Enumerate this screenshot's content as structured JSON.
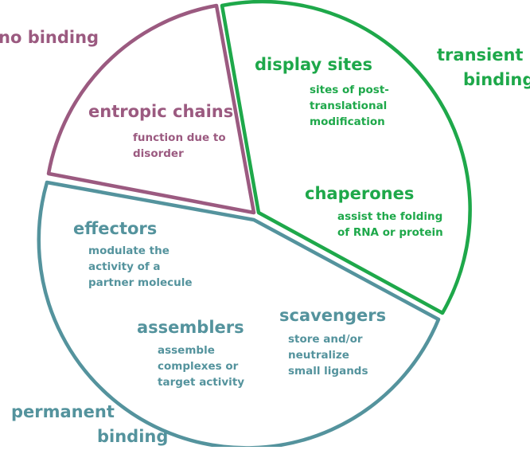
{
  "colors": {
    "no_binding": "#9b5a80",
    "transient_binding": "#1ea84a",
    "permanent_binding": "#54939d"
  },
  "groups": {
    "no_binding": "no binding",
    "transient_binding_1": "transient",
    "transient_binding_2": "binding",
    "permanent_binding_1": "permanent",
    "permanent_binding_2": "binding"
  },
  "categories": {
    "entropic_chains": {
      "title": "entropic chains",
      "desc": "function due to\ndisorder"
    },
    "display_sites": {
      "title": "display sites",
      "desc": "sites of post-\ntranslational\nmodification"
    },
    "chaperones": {
      "title": "chaperones",
      "desc": "assist the folding\nof RNA or protein"
    },
    "effectors": {
      "title": "effectors",
      "desc": "modulate the\nactivity of a\npartner molecule"
    },
    "assemblers": {
      "title": "assemblers",
      "desc": "assemble\ncomplexes or\ntarget activity"
    },
    "scavengers": {
      "title": "scavengers",
      "desc": "store and/or\nneutralize\nsmall ligands"
    }
  }
}
